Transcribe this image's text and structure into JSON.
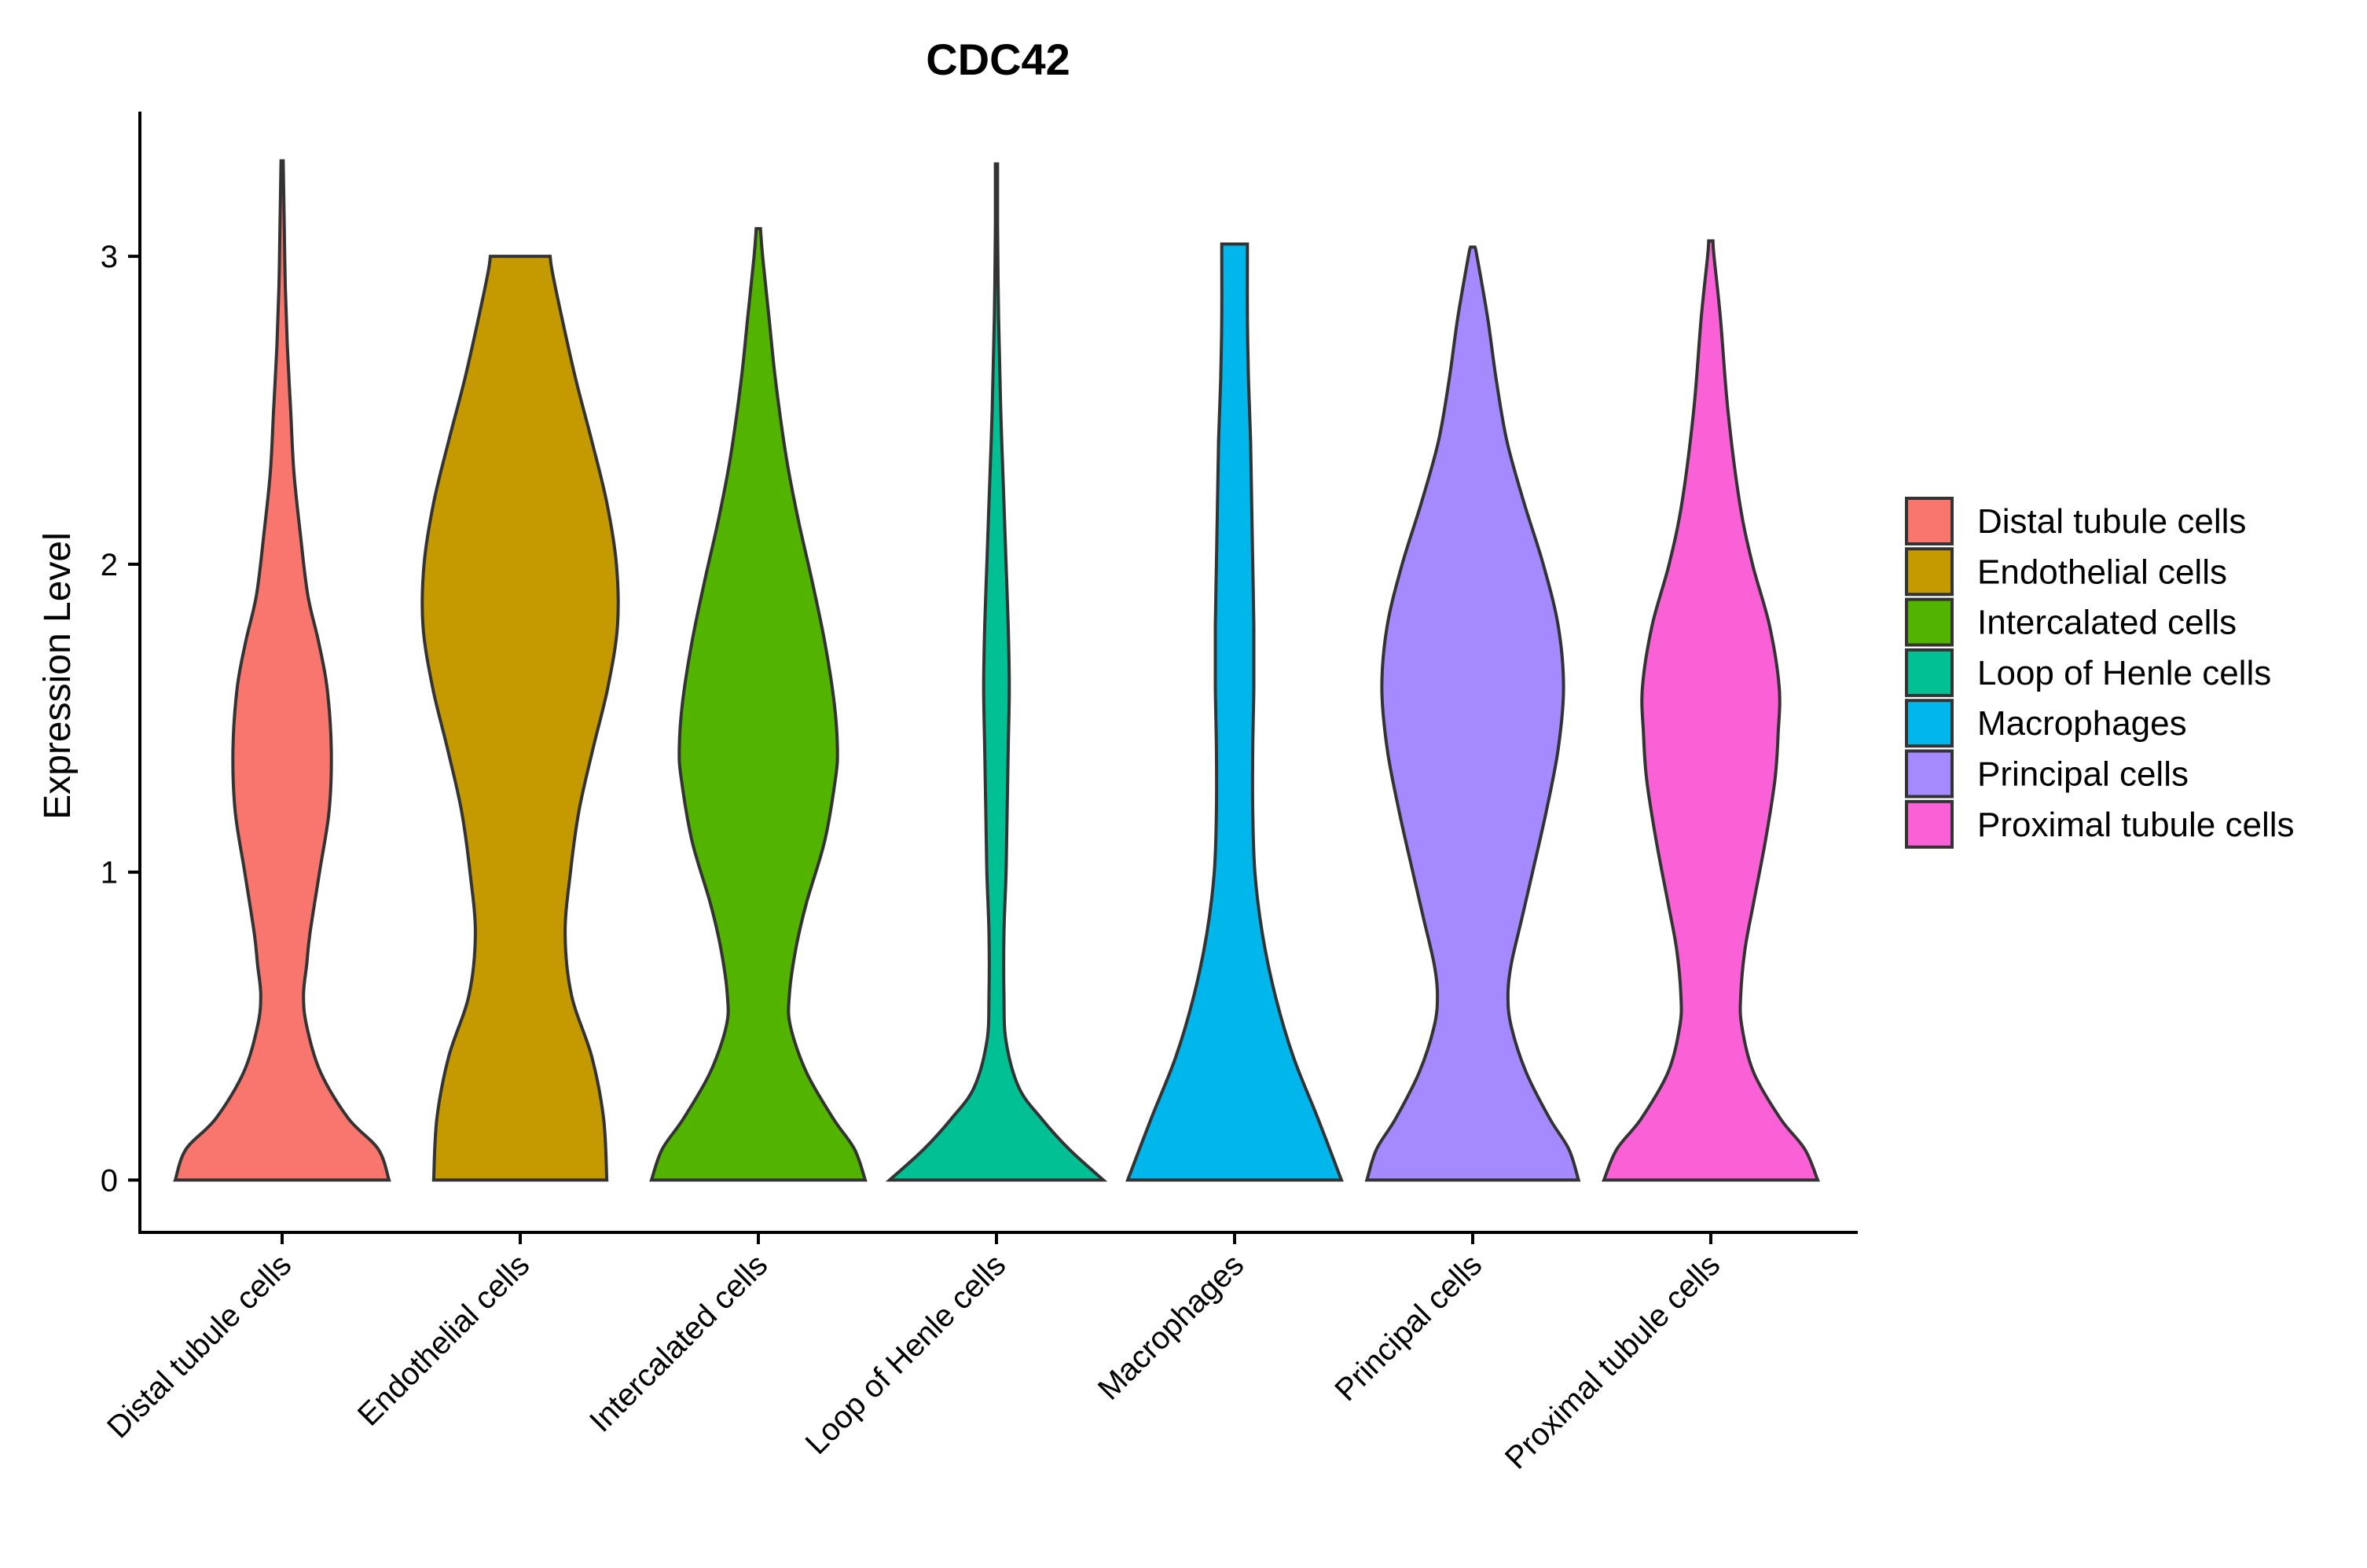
{
  "chart_data": {
    "type": "violin",
    "title": "CDC42",
    "xlabel": "",
    "ylabel": "Expression Level",
    "ylim": [
      -0.17,
      3.47
    ],
    "yticks": [
      0,
      1,
      2,
      3
    ],
    "grid": false,
    "legend_position": "right",
    "categories": [
      "Distal tubule cells",
      "Endothelial cells",
      "Intercalated cells",
      "Loop of Henle cells",
      "Macrophages",
      "Principal cells",
      "Proximal tubule cells"
    ],
    "colors": [
      "#F8766D",
      "#C49A00",
      "#53B400",
      "#00C094",
      "#00B6EB",
      "#A58AFF",
      "#FB61D7"
    ],
    "series": [
      {
        "name": "Distal tubule cells",
        "max": 3.31,
        "density_y": [
          0,
          0.1,
          0.2,
          0.35,
          0.5,
          0.6,
          0.7,
          0.8,
          1.0,
          1.2,
          1.4,
          1.6,
          1.75,
          1.9,
          2.1,
          2.3,
          2.5,
          2.7,
          2.9,
          3.1,
          3.31
        ],
        "half_width": [
          1.0,
          0.9,
          0.62,
          0.36,
          0.23,
          0.2,
          0.23,
          0.26,
          0.35,
          0.44,
          0.46,
          0.42,
          0.34,
          0.24,
          0.17,
          0.11,
          0.08,
          0.05,
          0.03,
          0.02,
          0.01
        ]
      },
      {
        "name": "Endothelial cells",
        "max": 3.0,
        "density_y": [
          0,
          0.2,
          0.4,
          0.6,
          0.8,
          1.0,
          1.2,
          1.4,
          1.6,
          1.8,
          2.0,
          2.2,
          2.4,
          2.6,
          2.8,
          2.95,
          3.0
        ],
        "half_width": [
          0.81,
          0.78,
          0.67,
          0.48,
          0.42,
          0.47,
          0.55,
          0.68,
          0.82,
          0.91,
          0.9,
          0.81,
          0.67,
          0.52,
          0.39,
          0.3,
          0.28
        ]
      },
      {
        "name": "Intercalated cells",
        "max": 3.09,
        "density_y": [
          0,
          0.1,
          0.2,
          0.35,
          0.5,
          0.6,
          0.75,
          0.9,
          1.1,
          1.3,
          1.4,
          1.55,
          1.75,
          1.95,
          2.15,
          2.35,
          2.6,
          2.8,
          3.0,
          3.09
        ],
        "half_width": [
          1.0,
          0.9,
          0.7,
          0.45,
          0.3,
          0.29,
          0.35,
          0.45,
          0.62,
          0.72,
          0.74,
          0.71,
          0.62,
          0.5,
          0.37,
          0.26,
          0.16,
          0.1,
          0.04,
          0.02
        ]
      },
      {
        "name": "Loop of Henle cells",
        "max": 3.3,
        "density_y": [
          0,
          0.1,
          0.2,
          0.3,
          0.45,
          0.6,
          0.8,
          1.0,
          1.2,
          1.4,
          1.6,
          1.8,
          2.0,
          2.2,
          2.5,
          2.8,
          3.1,
          3.3
        ],
        "half_width": [
          1.0,
          0.68,
          0.42,
          0.21,
          0.09,
          0.07,
          0.07,
          0.09,
          0.1,
          0.11,
          0.12,
          0.11,
          0.09,
          0.07,
          0.04,
          0.02,
          0.01,
          0.01
        ]
      },
      {
        "name": "Macrophages",
        "max": 3.04,
        "density_y": [
          0,
          0.2,
          0.4,
          0.6,
          0.8,
          1.0,
          1.2,
          1.4,
          1.6,
          1.8,
          2.0,
          2.2,
          2.4,
          2.6,
          2.8,
          3.0,
          3.04
        ],
        "half_width": [
          1.0,
          0.78,
          0.55,
          0.38,
          0.26,
          0.19,
          0.17,
          0.17,
          0.18,
          0.18,
          0.17,
          0.16,
          0.15,
          0.13,
          0.12,
          0.12,
          0.12
        ]
      },
      {
        "name": "Principal cells",
        "max": 3.03,
        "density_y": [
          0,
          0.1,
          0.2,
          0.35,
          0.5,
          0.6,
          0.7,
          0.85,
          1.0,
          1.2,
          1.4,
          1.6,
          1.8,
          2.0,
          2.2,
          2.4,
          2.6,
          2.8,
          3.0,
          3.03
        ],
        "half_width": [
          0.99,
          0.9,
          0.72,
          0.5,
          0.36,
          0.33,
          0.36,
          0.46,
          0.56,
          0.69,
          0.8,
          0.85,
          0.8,
          0.66,
          0.48,
          0.32,
          0.22,
          0.14,
          0.04,
          0.02
        ]
      },
      {
        "name": "Proximal tubule cells",
        "max": 3.05,
        "density_y": [
          0,
          0.1,
          0.2,
          0.35,
          0.5,
          0.6,
          0.75,
          0.9,
          1.1,
          1.3,
          1.45,
          1.6,
          1.8,
          2.0,
          2.2,
          2.5,
          2.8,
          3.0,
          3.05
        ],
        "half_width": [
          1.0,
          0.88,
          0.65,
          0.4,
          0.29,
          0.28,
          0.32,
          0.4,
          0.51,
          0.6,
          0.63,
          0.64,
          0.55,
          0.39,
          0.27,
          0.16,
          0.09,
          0.03,
          0.02
        ]
      }
    ]
  }
}
